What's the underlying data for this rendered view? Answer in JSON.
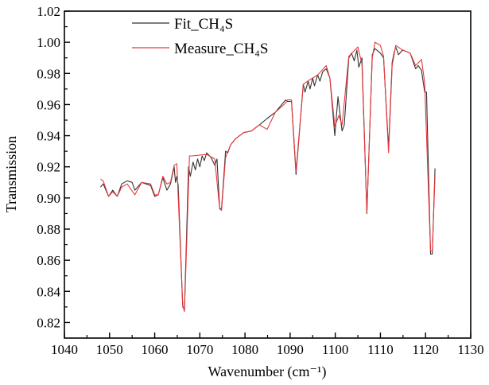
{
  "chart_data": {
    "type": "line",
    "title": "",
    "xlabel": "Wavenumber (cm⁻¹)",
    "ylabel": "Transmission",
    "xlim": [
      1040,
      1130
    ],
    "ylim": [
      0.81,
      1.02
    ],
    "xticks": [
      1040,
      1050,
      1060,
      1070,
      1080,
      1090,
      1100,
      1110,
      1120,
      1130
    ],
    "yticks": [
      0.82,
      0.84,
      0.86,
      0.88,
      0.9,
      0.92,
      0.94,
      0.96,
      0.98,
      1.0,
      1.02
    ],
    "xtick_labels": [
      "1040",
      "1050",
      "1060",
      "1070",
      "1080",
      "1090",
      "1100",
      "1110",
      "1120",
      "1130"
    ],
    "ytick_labels": [
      "0.82",
      "0.84",
      "0.86",
      "0.88",
      "0.90",
      "0.92",
      "0.94",
      "0.96",
      "0.98",
      "1.00",
      "1.02"
    ],
    "grid": false,
    "legend_position": "top-left",
    "series": [
      {
        "name": "Fit_CH₄S",
        "color": "#333333",
        "x": [
          1048.0,
          1048.6,
          1049.8,
          1050.7,
          1051.7,
          1052.7,
          1053.9,
          1055.0,
          1055.6,
          1057.1,
          1059.1,
          1060.0,
          1060.8,
          1061.8,
          1062.7,
          1063.5,
          1064.3,
          1064.6,
          1064.9,
          1065.2,
          1066.2,
          1066.6,
          1067.5,
          1067.9,
          1068.5,
          1069.0,
          1069.5,
          1070.0,
          1070.5,
          1071.0,
          1071.5,
          1072.5,
          1073.3,
          1073.8,
          1074.4,
          1074.8,
          1075.7,
          1076.2,
          1076.8,
          1077.9,
          1079.7,
          1081.4,
          1083.2,
          1084.9,
          1086.7,
          1089.0,
          1089.4,
          1090.3,
          1091.3,
          1092.9,
          1093.3,
          1094.0,
          1094.4,
          1095.0,
          1095.4,
          1096.1,
          1096.6,
          1097.2,
          1098.0,
          1098.8,
          1099.9,
          1100.6,
          1101.5,
          1102.0,
          1103.0,
          1103.6,
          1104.2,
          1104.8,
          1105.2,
          1105.9,
          1107.0,
          1108.2,
          1108.8,
          1110.0,
          1110.7,
          1111.8,
          1112.6,
          1113.0,
          1113.4,
          1114.0,
          1114.9,
          1116.6,
          1117.8,
          1118.4,
          1119.1,
          1119.8,
          1120.2,
          1121.1,
          1121.5,
          1122.1
        ],
        "y": [
          0.907,
          0.909,
          0.901,
          0.905,
          0.901,
          0.909,
          0.911,
          0.91,
          0.905,
          0.91,
          0.908,
          0.901,
          0.902,
          0.913,
          0.905,
          0.909,
          0.92,
          0.91,
          0.914,
          0.908,
          0.83,
          0.829,
          0.92,
          0.914,
          0.923,
          0.918,
          0.925,
          0.92,
          0.927,
          0.924,
          0.929,
          0.926,
          0.921,
          0.925,
          0.893,
          0.893,
          0.93,
          0.929,
          0.934,
          0.938,
          0.942,
          0.943,
          0.947,
          0.951,
          0.955,
          0.963,
          0.962,
          0.962,
          0.915,
          0.973,
          0.968,
          0.975,
          0.97,
          0.977,
          0.972,
          0.979,
          0.975,
          0.981,
          0.983,
          0.977,
          0.94,
          0.965,
          0.943,
          0.947,
          0.99,
          0.993,
          0.988,
          0.995,
          0.984,
          0.99,
          0.89,
          0.992,
          0.996,
          0.993,
          0.99,
          0.932,
          0.987,
          0.993,
          0.997,
          0.992,
          0.995,
          0.993,
          0.983,
          0.985,
          0.982,
          0.968,
          0.968,
          0.864,
          0.864,
          0.919
        ]
      },
      {
        "name": "Measure_CH₄S",
        "color": "#e8383d",
        "x": [
          1048.0,
          1048.6,
          1049.8,
          1050.7,
          1051.7,
          1052.7,
          1053.9,
          1055.6,
          1057.1,
          1059.1,
          1060.0,
          1060.8,
          1061.8,
          1062.7,
          1063.5,
          1064.3,
          1064.9,
          1066.2,
          1066.6,
          1067.7,
          1068.3,
          1071.5,
          1073.3,
          1074.4,
          1074.8,
          1075.7,
          1076.8,
          1077.9,
          1079.7,
          1081.4,
          1083.2,
          1084.9,
          1086.7,
          1089.0,
          1089.4,
          1090.3,
          1091.3,
          1092.9,
          1094.4,
          1096.1,
          1098.0,
          1098.8,
          1099.9,
          1100.8,
          1101.5,
          1103.0,
          1105.0,
          1105.9,
          1107.0,
          1108.2,
          1108.8,
          1110.0,
          1110.7,
          1111.8,
          1112.6,
          1113.4,
          1114.9,
          1116.6,
          1117.8,
          1119.1,
          1119.8,
          1121.1,
          1121.5,
          1122.1
        ],
        "y": [
          0.912,
          0.911,
          0.901,
          0.904,
          0.901,
          0.907,
          0.909,
          0.902,
          0.91,
          0.909,
          0.902,
          0.902,
          0.914,
          0.909,
          0.91,
          0.921,
          0.922,
          0.831,
          0.827,
          0.927,
          0.927,
          0.928,
          0.925,
          0.893,
          0.892,
          0.926,
          0.934,
          0.938,
          0.942,
          0.943,
          0.947,
          0.944,
          0.955,
          0.961,
          0.963,
          0.963,
          0.917,
          0.973,
          0.976,
          0.979,
          0.985,
          0.977,
          0.946,
          0.953,
          0.947,
          0.991,
          0.997,
          0.986,
          0.891,
          0.99,
          1.0,
          0.998,
          0.991,
          0.929,
          0.985,
          0.998,
          0.995,
          0.993,
          0.985,
          0.989,
          0.974,
          0.866,
          0.866,
          0.914
        ]
      }
    ]
  }
}
